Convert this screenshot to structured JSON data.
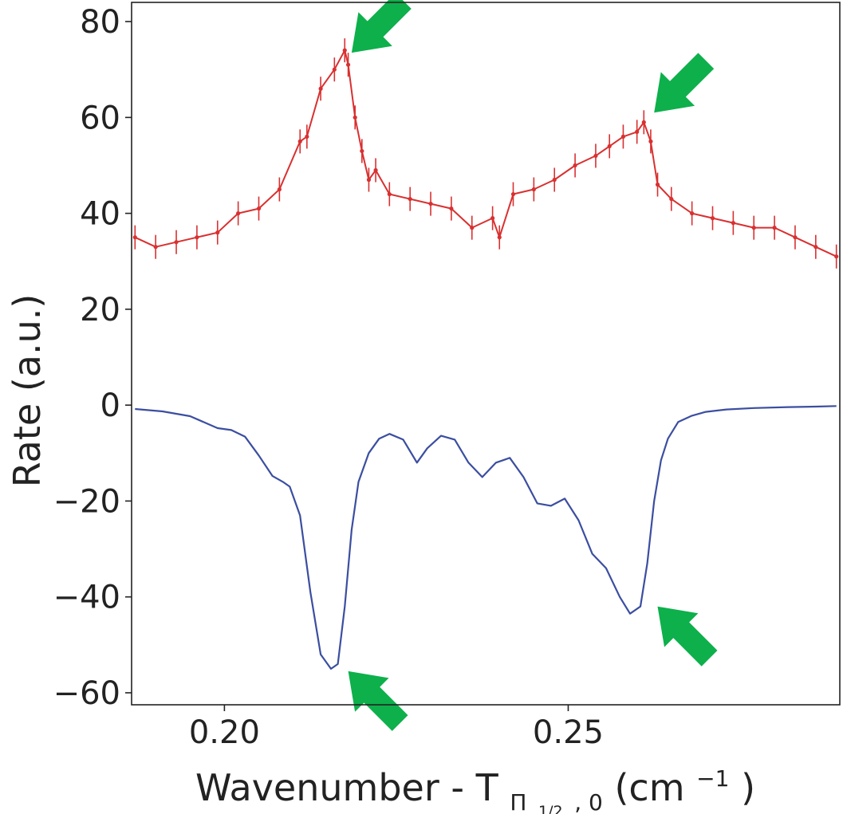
{
  "chart_data": {
    "type": "line",
    "title": "",
    "xlabel": {
      "prefix": "Wavenumber - T",
      "subscript_main": "Π",
      "subscript_sub": "1/2",
      "subscript_tail": ", 0",
      "unit_open": " (cm",
      "unit_exp": "−1",
      "unit_close": ")"
    },
    "ylabel": "Rate (a.u.)",
    "xlim": [
      0.1865,
      0.2895
    ],
    "ylim": [
      -62.5,
      84
    ],
    "xticks": [
      0.2,
      0.25
    ],
    "xtick_labels": [
      "0.20",
      "0.25"
    ],
    "yticks": [
      80,
      60,
      40,
      20,
      0,
      -20,
      -40,
      -60
    ],
    "ytick_labels": [
      "80",
      "60",
      "40",
      "20",
      "0",
      "−20",
      "−40",
      "−60"
    ],
    "grid": false,
    "series": [
      {
        "kind": "measured",
        "color": "#d93030",
        "error_bar": 2.5,
        "x": [
          0.187,
          0.19,
          0.193,
          0.196,
          0.199,
          0.202,
          0.205,
          0.208,
          0.211,
          0.212,
          0.214,
          0.216,
          0.2175,
          0.218,
          0.219,
          0.22,
          0.221,
          0.222,
          0.224,
          0.227,
          0.23,
          0.233,
          0.236,
          0.239,
          0.24,
          0.242,
          0.245,
          0.248,
          0.251,
          0.254,
          0.256,
          0.258,
          0.26,
          0.261,
          0.262,
          0.263,
          0.265,
          0.268,
          0.271,
          0.274,
          0.277,
          0.28,
          0.283,
          0.286,
          0.289
        ],
        "y": [
          35,
          33,
          34,
          35,
          36,
          40,
          41,
          45,
          55,
          56,
          66,
          70,
          74,
          71,
          60,
          53,
          47,
          49,
          44,
          43,
          42,
          41,
          37,
          39,
          35,
          44,
          45,
          47,
          50,
          52,
          54,
          56,
          57,
          59,
          55,
          46,
          43,
          40,
          39,
          38,
          37,
          37,
          35,
          33,
          31
        ]
      },
      {
        "kind": "model",
        "color": "#3b4ea0",
        "x": [
          0.187,
          0.191,
          0.195,
          0.199,
          0.201,
          0.203,
          0.205,
          0.207,
          0.2085,
          0.2095,
          0.211,
          0.2125,
          0.214,
          0.2155,
          0.2165,
          0.2175,
          0.2185,
          0.2195,
          0.221,
          0.2225,
          0.224,
          0.226,
          0.228,
          0.2295,
          0.2315,
          0.2335,
          0.2355,
          0.2375,
          0.2395,
          0.2415,
          0.2435,
          0.2455,
          0.2475,
          0.2495,
          0.2515,
          0.2535,
          0.2555,
          0.2575,
          0.259,
          0.2605,
          0.2615,
          0.2625,
          0.2635,
          0.2645,
          0.266,
          0.268,
          0.27,
          0.273,
          0.277,
          0.282,
          0.286,
          0.289
        ],
        "y": [
          -0.8,
          -1.3,
          -2.3,
          -4.8,
          -5.2,
          -6.6,
          -10.5,
          -14.8,
          -16.0,
          -17.0,
          -23.0,
          -39.0,
          -52.0,
          -55.0,
          -54.0,
          -42.0,
          -26.0,
          -16.0,
          -10.0,
          -7.0,
          -6.0,
          -7.2,
          -12.0,
          -9.0,
          -6.4,
          -7.2,
          -12.0,
          -15.0,
          -12.0,
          -11.0,
          -15.0,
          -20.5,
          -21.0,
          -19.5,
          -24.0,
          -31.0,
          -34.0,
          -40.0,
          -43.5,
          -42.0,
          -33.0,
          -20.0,
          -11.5,
          -7.0,
          -3.5,
          -2.2,
          -1.4,
          -0.9,
          -0.6,
          -0.4,
          -0.3,
          -0.2
        ]
      }
    ],
    "annotations": [
      {
        "kind": "arrow",
        "color": "#0db04b",
        "points_to": {
          "x": 0.2185,
          "y": 73.5
        }
      },
      {
        "kind": "arrow",
        "color": "#0db04b",
        "points_to": {
          "x": 0.2625,
          "y": 61.0
        }
      },
      {
        "kind": "arrow",
        "color": "#0db04b",
        "points_to": {
          "x": 0.218,
          "y": -55.5
        }
      },
      {
        "kind": "arrow",
        "color": "#0db04b",
        "points_to": {
          "x": 0.263,
          "y": -42.0
        }
      }
    ]
  }
}
